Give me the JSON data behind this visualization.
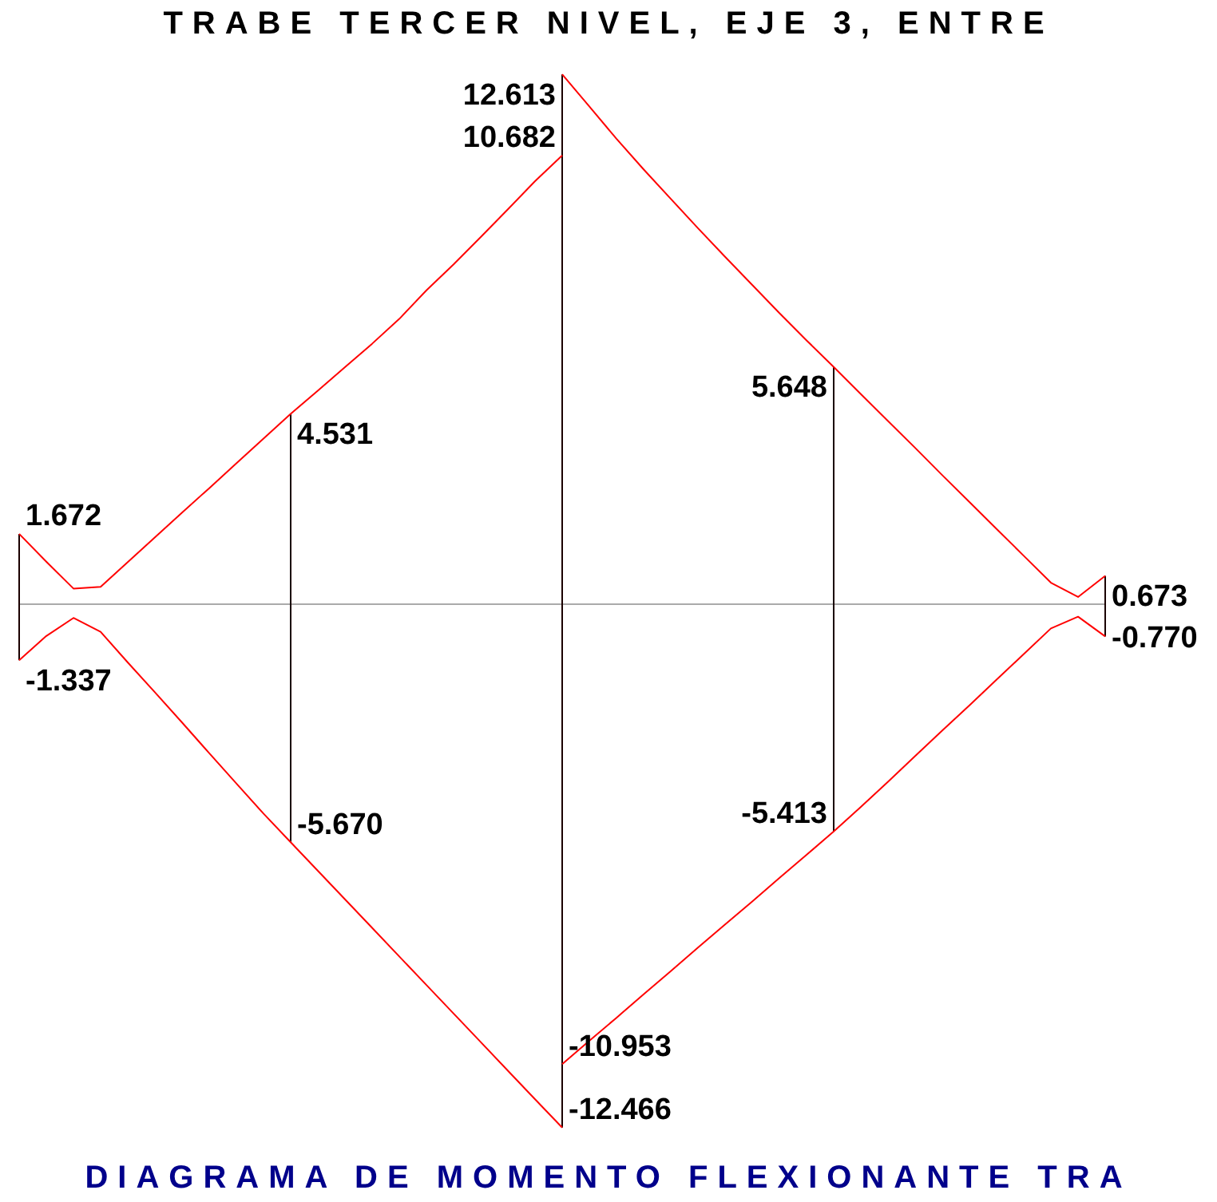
{
  "chart_data": {
    "type": "line",
    "title": "TRABE TERCER NIVEL, EJE 3, ENTRE",
    "annotations": [
      "DIAGRAMA DE MOMENTO FLEXIONANTE TRA"
    ],
    "categories": [
      null,
      null,
      null,
      null,
      null,
      null,
      null,
      null,
      null,
      null,
      null,
      null,
      null,
      null,
      null,
      null,
      null,
      null,
      null,
      null,
      null,
      null,
      null,
      null,
      null,
      null,
      null,
      null,
      null,
      null,
      null,
      null,
      null,
      null,
      null,
      null,
      null,
      null,
      null,
      null,
      null
    ],
    "series": [
      {
        "color": "#ff0000",
        "values": [
          1.672,
          1.01,
          0.37,
          0.41,
          1.0,
          1.59,
          2.18,
          2.76,
          3.35,
          3.94,
          4.531,
          5.08,
          5.64,
          6.2,
          6.79,
          7.47,
          8.09,
          8.74,
          9.4,
          10.07,
          10.682,
          null,
          null,
          null,
          null,
          null,
          null,
          null,
          null,
          null,
          null,
          null,
          null,
          null,
          null,
          null,
          null,
          null,
          null,
          null,
          null
        ],
        "value_labels": [
          "1.672",
          null,
          null,
          null,
          null,
          null,
          null,
          null,
          null,
          null,
          "4.531",
          null,
          null,
          null,
          null,
          null,
          null,
          null,
          null,
          null,
          "10.682",
          null,
          null,
          null,
          null,
          null,
          null,
          null,
          null,
          null,
          null,
          null,
          null,
          null,
          null,
          null,
          null,
          null,
          null,
          null,
          null
        ]
      },
      {
        "color": "#ff0000",
        "values": [
          null,
          null,
          null,
          null,
          null,
          null,
          null,
          null,
          null,
          null,
          null,
          null,
          null,
          null,
          null,
          null,
          null,
          null,
          null,
          null,
          12.613,
          11.85,
          11.08,
          10.35,
          9.65,
          8.95,
          8.27,
          7.6,
          6.93,
          6.28,
          5.648,
          5.0,
          4.36,
          3.72,
          3.07,
          2.43,
          1.79,
          1.15,
          0.51,
          0.17,
          0.673
        ],
        "value_labels": [
          null,
          null,
          null,
          null,
          null,
          null,
          null,
          null,
          null,
          null,
          null,
          null,
          null,
          null,
          null,
          null,
          null,
          null,
          null,
          null,
          "12.613",
          null,
          null,
          null,
          null,
          null,
          null,
          null,
          null,
          null,
          "5.648",
          null,
          null,
          null,
          null,
          null,
          null,
          null,
          null,
          null,
          "0.673"
        ]
      },
      {
        "color": "#ff0000",
        "values": [
          -1.337,
          -0.76,
          -0.33,
          -0.66,
          -1.39,
          -2.1,
          -2.82,
          -3.55,
          -4.27,
          -4.99,
          -5.67,
          -6.35,
          -7.03,
          -7.71,
          -8.39,
          -9.07,
          -9.75,
          -10.43,
          -11.11,
          -11.79,
          -12.466,
          null,
          null,
          null,
          null,
          null,
          null,
          null,
          null,
          null,
          null,
          null,
          null,
          null,
          null,
          null,
          null,
          null,
          null,
          null,
          null
        ],
        "value_labels": [
          "-1.337",
          null,
          null,
          null,
          null,
          null,
          null,
          null,
          null,
          null,
          "-5.670",
          null,
          null,
          null,
          null,
          null,
          null,
          null,
          null,
          null,
          "-12.466",
          null,
          null,
          null,
          null,
          null,
          null,
          null,
          null,
          null,
          null,
          null,
          null,
          null,
          null,
          null,
          null,
          null,
          null,
          null,
          null
        ]
      },
      {
        "color": "#ff0000",
        "values": [
          null,
          null,
          null,
          null,
          null,
          null,
          null,
          null,
          null,
          null,
          null,
          null,
          null,
          null,
          null,
          null,
          null,
          null,
          null,
          null,
          -10.953,
          -10.4,
          -9.85,
          -9.29,
          -8.74,
          -8.18,
          -7.63,
          -7.08,
          -6.52,
          -5.97,
          -5.413,
          -4.83,
          -4.23,
          -3.62,
          -3.01,
          -2.41,
          -1.8,
          -1.19,
          -0.58,
          -0.3,
          -0.77
        ],
        "value_labels": [
          null,
          null,
          null,
          null,
          null,
          null,
          null,
          null,
          null,
          null,
          null,
          null,
          null,
          null,
          null,
          null,
          null,
          null,
          null,
          null,
          "-10.953",
          null,
          null,
          null,
          null,
          null,
          null,
          null,
          null,
          null,
          "-5.413",
          null,
          null,
          null,
          null,
          null,
          null,
          null,
          null,
          null,
          "-0.770"
        ]
      }
    ],
    "grid": false,
    "legend": false,
    "tick_labels": false
  }
}
